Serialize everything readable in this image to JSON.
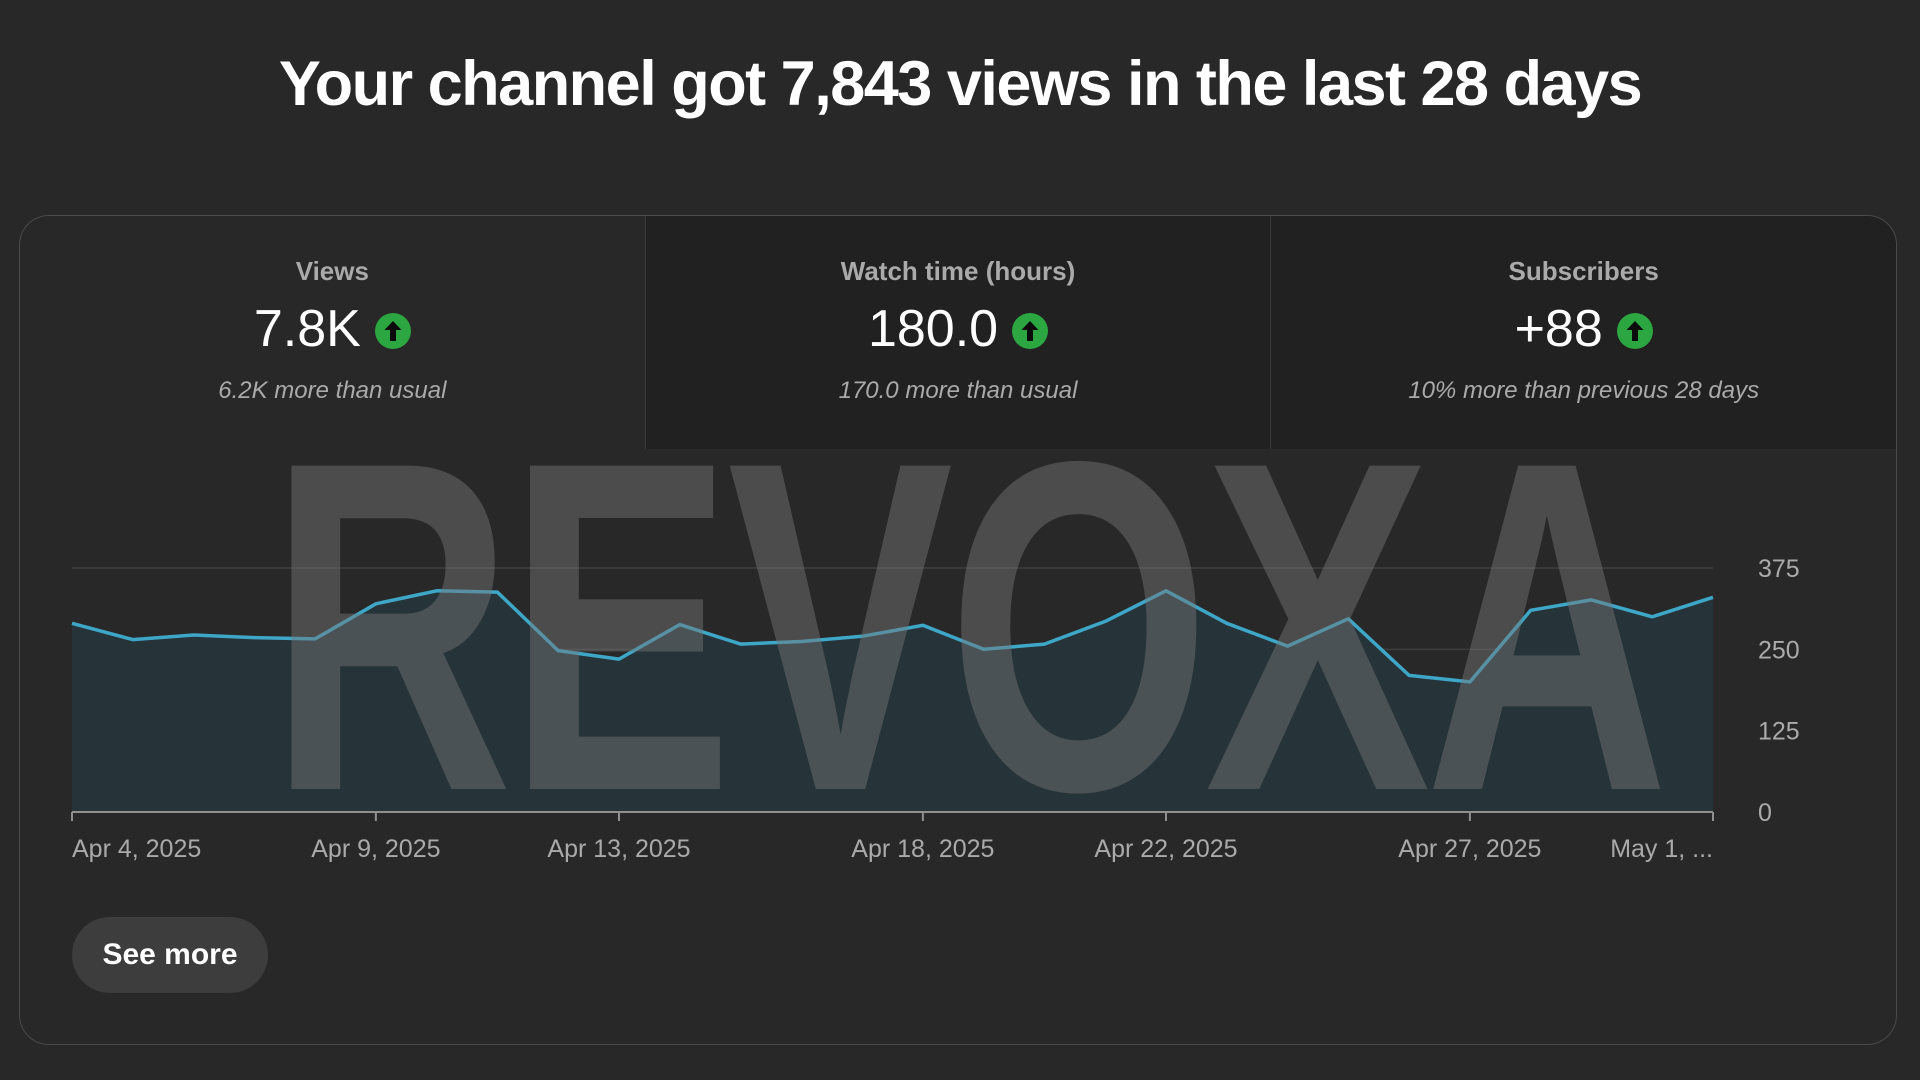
{
  "headline": "Your channel got 7,843 views in the last 28 days",
  "metrics": [
    {
      "label": "Views",
      "value": "7.8K",
      "icon": "arrow-up-icon",
      "note": "6.2K more than usual",
      "selected": true
    },
    {
      "label": "Watch time (hours)",
      "value": "180.0",
      "icon": "arrow-up-icon",
      "note": "170.0 more than usual",
      "selected": false
    },
    {
      "label": "Subscribers",
      "value": "+88",
      "icon": "arrow-up-icon",
      "note": "10% more than previous 28 days",
      "selected": false
    }
  ],
  "watermark": "REVOXA",
  "see_more_label": "See more",
  "colors": {
    "line": "#3ea6c7",
    "area": "#263339",
    "up_badge": "#2ba640",
    "background": "#282828"
  },
  "chart_data": {
    "type": "area",
    "series": [
      {
        "values": [
          290,
          265,
          272,
          268,
          266,
          320,
          340,
          338,
          248,
          235,
          288,
          258,
          262,
          270,
          287,
          250,
          258,
          293,
          340,
          290,
          255,
          297,
          210,
          200,
          310,
          326,
          300,
          330
        ]
      }
    ],
    "x_tick_labels": [
      "Apr 4, 2025",
      "Apr 9, 2025",
      "Apr 13, 2025",
      "Apr 18, 2025",
      "Apr 22, 2025",
      "Apr 27, 2025",
      "May 1, ..."
    ],
    "x_tick_index": [
      0,
      5,
      9,
      14,
      18,
      23,
      27
    ],
    "y_ticks": [
      "375",
      "250",
      "125",
      "0"
    ],
    "y_tick_values": [
      375,
      250,
      125,
      0
    ],
    "ylim": [
      0,
      375
    ],
    "grid": "horizontal",
    "y_axis_position": "right"
  }
}
